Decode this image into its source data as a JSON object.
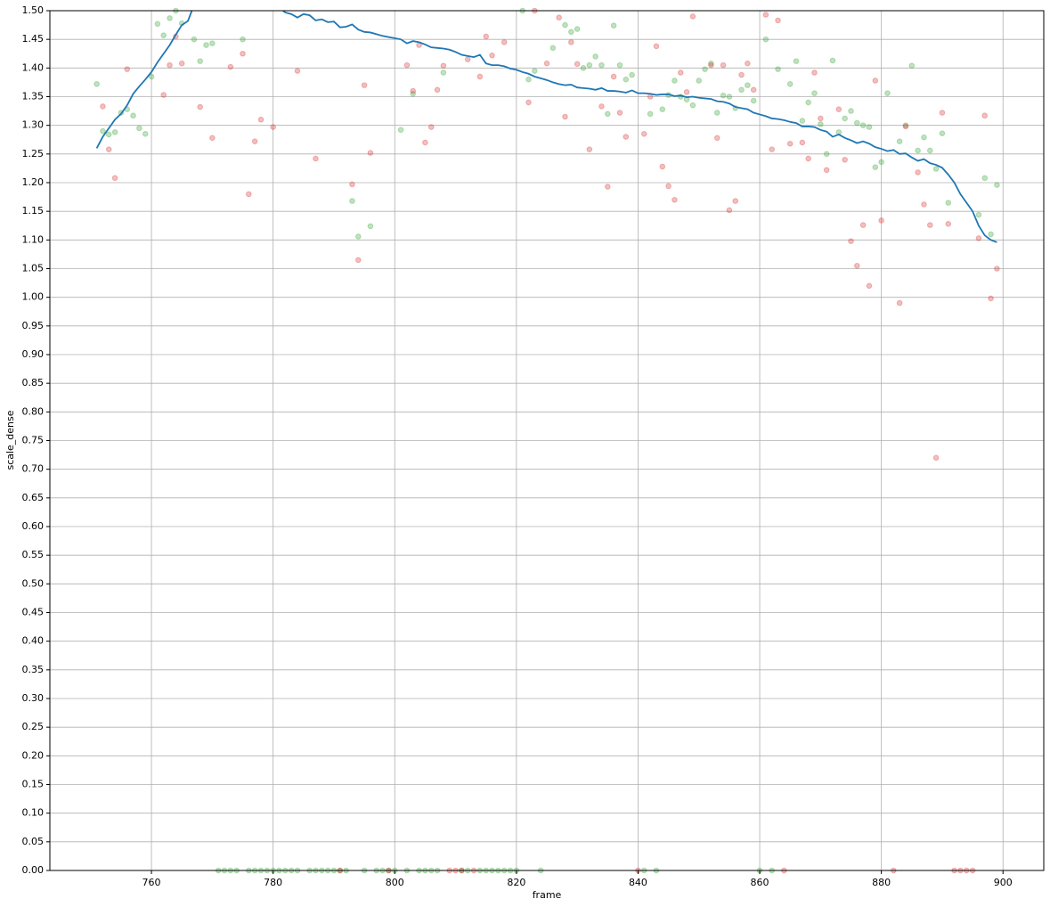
{
  "chart_data": {
    "type": "line",
    "x_label": "frame",
    "y_label": "scale_dense",
    "xlim": [
      743.3,
      906.7
    ],
    "ylim": [
      0,
      1.5
    ],
    "grid": true,
    "xticks": [
      760,
      780,
      800,
      820,
      840,
      860,
      880,
      900
    ],
    "yticks": [
      {
        "value": 0,
        "label": "0.00"
      },
      0.05,
      {
        "value": 0.1,
        "label": "0.10"
      },
      0.15,
      {
        "value": 0.2,
        "label": "0.20"
      },
      0.25,
      {
        "value": 0.3,
        "label": "0.30"
      },
      0.35,
      {
        "value": 0.4,
        "label": "0.40"
      },
      0.45,
      {
        "value": 0.5,
        "label": "0.50"
      },
      0.55,
      {
        "value": 0.6,
        "label": "0.60"
      },
      0.65,
      {
        "value": 0.7,
        "label": "0.70"
      },
      0.75,
      {
        "value": 0.8,
        "label": "0.80"
      },
      0.85,
      {
        "value": 0.9,
        "label": "0.90"
      },
      0.95,
      {
        "value": 1,
        "label": "1.00"
      },
      1.05,
      {
        "value": 1.1,
        "label": "1.10"
      },
      1.15,
      {
        "value": 1.2,
        "label": "1.20"
      },
      1.25,
      {
        "value": 1.3,
        "label": "1.30"
      },
      1.35,
      {
        "value": 1.4,
        "label": "1.40"
      },
      1.45,
      {
        "value": 1.5,
        "label": "1.50"
      }
    ],
    "series": [
      {
        "type": "scatter",
        "color": "#2ca02c",
        "alpha": 0.3,
        "x": [
          751,
          752,
          753,
          754,
          755,
          756,
          757,
          758,
          759,
          760,
          761,
          762,
          763,
          764,
          765,
          767,
          768,
          769,
          770,
          775,
          793,
          794,
          796,
          801,
          803,
          808,
          821,
          822,
          823,
          826,
          828,
          829,
          830,
          831,
          832,
          833,
          834,
          835,
          836,
          837,
          838,
          839,
          842,
          844,
          845,
          846,
          847,
          848,
          849,
          850,
          851,
          852,
          853,
          854,
          855,
          856,
          857,
          858,
          859,
          861,
          863,
          865,
          866,
          867,
          868,
          869,
          870,
          871,
          872,
          873,
          874,
          875,
          876,
          877,
          878,
          879,
          880,
          881,
          883,
          884,
          885,
          886,
          887,
          888,
          889,
          890,
          891,
          896,
          897,
          898,
          899,
          771,
          772,
          773,
          774,
          776,
          777,
          778,
          779,
          780,
          781,
          782,
          783,
          784,
          786,
          787,
          788,
          789,
          790,
          791,
          792,
          795,
          797,
          798,
          799,
          800,
          802,
          804,
          805,
          806,
          807,
          811,
          812,
          814,
          815,
          816,
          817,
          818,
          819,
          820,
          824,
          841,
          843,
          860,
          862
        ],
        "values": [
          1.372,
          1.29,
          1.284,
          1.288,
          1.322,
          1.328,
          1.317,
          1.295,
          1.285,
          1.385,
          1.477,
          1.457,
          1.487,
          1.5,
          1.478,
          1.45,
          1.412,
          1.44,
          1.443,
          1.45,
          1.168,
          1.106,
          1.124,
          1.292,
          1.355,
          1.392,
          1.5,
          1.38,
          1.395,
          1.435,
          1.475,
          1.463,
          1.468,
          1.4,
          1.405,
          1.42,
          1.405,
          1.32,
          1.474,
          1.405,
          1.38,
          1.388,
          1.32,
          1.328,
          1.353,
          1.378,
          1.35,
          1.345,
          1.335,
          1.378,
          1.398,
          1.408,
          1.322,
          1.352,
          1.35,
          1.33,
          1.362,
          1.37,
          1.343,
          1.45,
          1.398,
          1.372,
          1.412,
          1.308,
          1.34,
          1.356,
          1.302,
          1.25,
          1.413,
          1.288,
          1.312,
          1.325,
          1.304,
          1.3,
          1.297,
          1.227,
          1.236,
          1.356,
          1.272,
          1.3,
          1.404,
          1.256,
          1.279,
          1.256,
          1.224,
          1.286,
          1.165,
          1.144,
          1.208,
          1.11,
          1.196,
          0,
          0,
          0,
          0,
          0,
          0,
          0,
          0,
          0,
          0,
          0,
          0,
          0,
          0,
          0,
          0,
          0,
          0,
          0,
          0,
          0,
          0,
          0,
          0,
          0,
          0,
          0,
          0,
          0,
          0,
          0,
          0,
          0,
          0,
          0,
          0,
          0,
          0,
          0,
          0,
          0,
          0,
          0,
          0
        ]
      },
      {
        "type": "scatter",
        "color": "#d62728",
        "alpha": 0.3,
        "x": [
          752,
          753,
          754,
          756,
          762,
          763,
          764,
          765,
          768,
          770,
          773,
          775,
          776,
          777,
          778,
          780,
          784,
          787,
          793,
          794,
          795,
          796,
          802,
          803,
          804,
          805,
          806,
          807,
          808,
          812,
          814,
          815,
          816,
          818,
          822,
          823,
          825,
          827,
          828,
          829,
          830,
          832,
          834,
          835,
          836,
          837,
          838,
          841,
          842,
          843,
          844,
          845,
          846,
          847,
          848,
          849,
          852,
          853,
          854,
          855,
          856,
          857,
          858,
          859,
          861,
          862,
          863,
          865,
          867,
          868,
          869,
          870,
          871,
          873,
          874,
          875,
          876,
          877,
          878,
          879,
          880,
          883,
          884,
          886,
          887,
          888,
          889,
          890,
          891,
          896,
          897,
          898,
          899,
          791,
          799,
          809,
          810,
          811,
          813,
          840,
          864,
          882,
          892,
          893,
          894,
          895
        ],
        "values": [
          1.333,
          1.258,
          1.208,
          1.398,
          1.353,
          1.405,
          1.455,
          1.408,
          1.332,
          1.278,
          1.402,
          1.425,
          1.18,
          1.272,
          1.31,
          1.297,
          1.395,
          1.242,
          1.197,
          1.065,
          1.37,
          1.252,
          1.405,
          1.36,
          1.44,
          1.27,
          1.297,
          1.362,
          1.404,
          1.415,
          1.385,
          1.455,
          1.422,
          1.445,
          1.34,
          1.5,
          1.408,
          1.488,
          1.315,
          1.445,
          1.407,
          1.258,
          1.333,
          1.193,
          1.385,
          1.322,
          1.28,
          1.285,
          1.35,
          1.438,
          1.228,
          1.194,
          1.17,
          1.392,
          1.358,
          1.49,
          1.405,
          1.278,
          1.405,
          1.152,
          1.168,
          1.388,
          1.408,
          1.362,
          1.493,
          1.258,
          1.483,
          1.268,
          1.27,
          1.242,
          1.392,
          1.312,
          1.222,
          1.328,
          1.24,
          1.098,
          1.055,
          1.126,
          1.02,
          1.378,
          1.134,
          0.99,
          1.298,
          1.218,
          1.162,
          1.126,
          0.72,
          1.322,
          1.128,
          1.103,
          1.317,
          0.998,
          1.05,
          0,
          0,
          0,
          0,
          0,
          0,
          0,
          0,
          0,
          0,
          0,
          0,
          0
        ]
      },
      {
        "type": "line",
        "color": "#1f77b4",
        "x": [
          751,
          752,
          753,
          754,
          755,
          756,
          757,
          758,
          759,
          760,
          761,
          762,
          763,
          764,
          765,
          766,
          767,
          768,
          769,
          770,
          771,
          772,
          773,
          774,
          775,
          776,
          777,
          778,
          779,
          780,
          781,
          782,
          783,
          784,
          785,
          786,
          787,
          788,
          789,
          790,
          791,
          792,
          793,
          794,
          795,
          796,
          797,
          798,
          799,
          800,
          801,
          802,
          803,
          804,
          805,
          806,
          807,
          808,
          809,
          810,
          811,
          812,
          813,
          814,
          815,
          816,
          817,
          818,
          819,
          820,
          821,
          822,
          823,
          824,
          825,
          826,
          827,
          828,
          829,
          830,
          831,
          832,
          833,
          834,
          835,
          836,
          837,
          838,
          839,
          840,
          841,
          842,
          843,
          844,
          845,
          846,
          847,
          848,
          849,
          850,
          851,
          852,
          853,
          854,
          855,
          856,
          857,
          858,
          859,
          860,
          861,
          862,
          863,
          864,
          865,
          866,
          867,
          868,
          869,
          870,
          871,
          872,
          873,
          874,
          875,
          876,
          877,
          878,
          879,
          880,
          881,
          882,
          883,
          884,
          885,
          886,
          887,
          888,
          889,
          890,
          891,
          892,
          893,
          894,
          895,
          896,
          897,
          898,
          899
        ],
        "values": [
          1.26,
          1.28,
          1.295,
          1.31,
          1.32,
          1.335,
          1.355,
          1.368,
          1.38,
          1.393,
          1.41,
          1.425,
          1.44,
          1.458,
          1.475,
          1.482,
          1.51,
          1.525,
          1.535,
          1.54,
          1.545,
          1.545,
          1.54,
          1.54,
          1.535,
          1.53,
          1.525,
          1.52,
          1.515,
          1.51,
          1.505,
          1.497,
          1.494,
          1.488,
          1.494,
          1.492,
          1.483,
          1.485,
          1.48,
          1.481,
          1.471,
          1.472,
          1.476,
          1.467,
          1.463,
          1.462,
          1.459,
          1.456,
          1.454,
          1.452,
          1.45,
          1.443,
          1.447,
          1.445,
          1.441,
          1.436,
          1.435,
          1.434,
          1.432,
          1.428,
          1.423,
          1.421,
          1.419,
          1.423,
          1.408,
          1.405,
          1.405,
          1.403,
          1.399,
          1.397,
          1.393,
          1.39,
          1.385,
          1.382,
          1.379,
          1.375,
          1.372,
          1.37,
          1.371,
          1.366,
          1.365,
          1.364,
          1.362,
          1.365,
          1.36,
          1.36,
          1.359,
          1.357,
          1.361,
          1.356,
          1.356,
          1.355,
          1.353,
          1.354,
          1.354,
          1.351,
          1.352,
          1.349,
          1.35,
          1.348,
          1.347,
          1.346,
          1.342,
          1.341,
          1.338,
          1.332,
          1.33,
          1.328,
          1.322,
          1.319,
          1.316,
          1.312,
          1.311,
          1.309,
          1.306,
          1.304,
          1.298,
          1.298,
          1.297,
          1.292,
          1.289,
          1.28,
          1.284,
          1.278,
          1.274,
          1.269,
          1.272,
          1.268,
          1.262,
          1.259,
          1.255,
          1.257,
          1.25,
          1.251,
          1.244,
          1.238,
          1.241,
          1.234,
          1.231,
          1.226,
          1.214,
          1.2,
          1.18,
          1.165,
          1.15,
          1.125,
          1.108,
          1.1,
          1.096
        ]
      }
    ]
  }
}
